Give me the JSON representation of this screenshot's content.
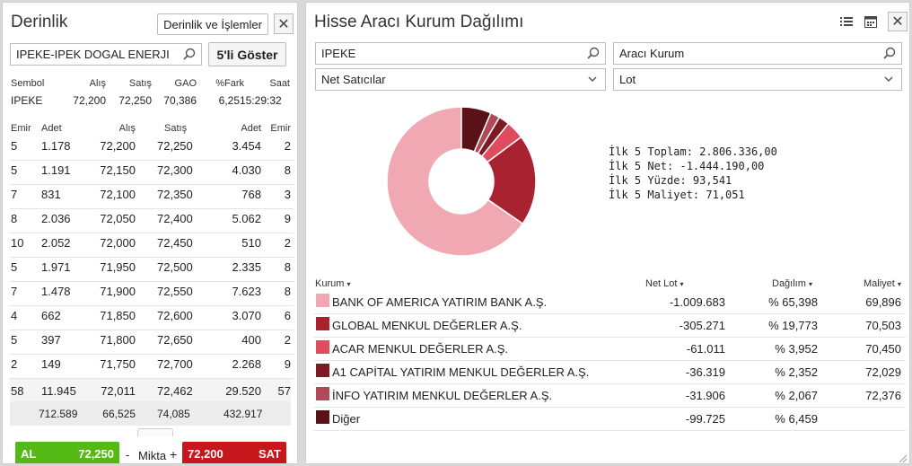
{
  "left": {
    "title": "Derinlik",
    "depth_button": "Derinlik ve İşlemler",
    "search_value": "IPEKE-IPEK DOGAL ENERJI",
    "show5_button": "5'li Göster",
    "summary_headers": [
      "Sembol",
      "Alış",
      "Satış",
      "GAO",
      "%Fark",
      "Saat"
    ],
    "summary_values": [
      "IPEKE",
      "72,200",
      "72,250",
      "70,386",
      "6,25",
      "15:29:32"
    ],
    "depth_headers": [
      "Emir",
      "Adet",
      "Alış",
      "Satış",
      "Adet",
      "Emir"
    ],
    "depth_rows": [
      [
        "5",
        "1.178",
        "72,200",
        "72,250",
        "3.454",
        "2"
      ],
      [
        "5",
        "1.191",
        "72,150",
        "72,300",
        "4.030",
        "8"
      ],
      [
        "7",
        "831",
        "72,100",
        "72,350",
        "768",
        "3"
      ],
      [
        "8",
        "2.036",
        "72,050",
        "72,400",
        "5.062",
        "9"
      ],
      [
        "10",
        "2.052",
        "72,000",
        "72,450",
        "510",
        "2"
      ],
      [
        "5",
        "1.971",
        "71,950",
        "72,500",
        "2.335",
        "8"
      ],
      [
        "7",
        "1.478",
        "71,900",
        "72,550",
        "7.623",
        "8"
      ],
      [
        "4",
        "662",
        "71,850",
        "72,600",
        "3.070",
        "6"
      ],
      [
        "5",
        "397",
        "71,800",
        "72,650",
        "400",
        "2"
      ],
      [
        "2",
        "149",
        "71,750",
        "72,700",
        "2.268",
        "9"
      ]
    ],
    "total_row": [
      "58",
      "11.945",
      "72,011",
      "72,462",
      "29.520",
      "57"
    ],
    "total2_row": [
      "712.589",
      "66,525",
      "74,085",
      "432.917"
    ],
    "buy_label": "AL",
    "buy_price": "72,250",
    "minus": "-",
    "qty_label": "Mikta",
    "plus": "+",
    "sell_price": "72,200",
    "sell_label": "SAT"
  },
  "right": {
    "title": "Hisse Aracı Kurum Dağılımı",
    "symbol_value": "IPEKE",
    "broker_placeholder": "Aracı Kurum",
    "filter_value": "Net Satıcılar",
    "unit_value": "Lot",
    "stats": [
      "İlk 5 Toplam: 2.806.336,00",
      "İlk 5 Net: -1.444.190,00",
      "İlk 5 Yüzde: 93,541",
      "İlk 5 Maliyet: 71,051"
    ],
    "table_headers": [
      "Kurum",
      "Net Lot",
      "Dağılım",
      "Maliyet"
    ],
    "rows": [
      {
        "name": "BANK OF AMERICA YATIRIM BANK A.Ş.",
        "net": "-1.009.683",
        "pct": "% 65,398",
        "cost": "69,896",
        "color": "#f0a9b2"
      },
      {
        "name": "GLOBAL MENKUL DEĞERLER A.Ş.",
        "net": "-305.271",
        "pct": "% 19,773",
        "cost": "70,503",
        "color": "#a8232f"
      },
      {
        "name": "ACAR MENKUL DEĞERLER A.Ş.",
        "net": "-61.011",
        "pct": "% 3,952",
        "cost": "70,450",
        "color": "#e04b5e"
      },
      {
        "name": "A1 CAPİTAL YATIRIM MENKUL DEĞERLER A.Ş.",
        "net": "-36.319",
        "pct": "% 2,352",
        "cost": "72,029",
        "color": "#7d1a22"
      },
      {
        "name": "İNFO YATIRIM MENKUL DEĞERLER A.Ş.",
        "net": "-31.906",
        "pct": "% 2,067",
        "cost": "72,376",
        "color": "#b04a5a"
      },
      {
        "name": "Diğer",
        "net": "-99.725",
        "pct": "% 6,459",
        "cost": "",
        "color": "#5a1118"
      }
    ]
  },
  "chart_data": {
    "type": "pie",
    "categories": [
      "BANK OF AMERICA YATIRIM BANK A.Ş.",
      "GLOBAL MENKUL DEĞERLER A.Ş.",
      "ACAR MENKUL DEĞERLER A.Ş.",
      "A1 CAPİTAL YATIRIM MENKUL DEĞERLER A.Ş.",
      "İNFO YATIRIM MENKUL DEĞERLER A.Ş.",
      "Diğer"
    ],
    "values": [
      65.398,
      19.773,
      3.952,
      2.352,
      2.067,
      6.459
    ],
    "colors": [
      "#f0a9b2",
      "#a8232f",
      "#e04b5e",
      "#7d1a22",
      "#b04a5a",
      "#5a1118"
    ]
  }
}
